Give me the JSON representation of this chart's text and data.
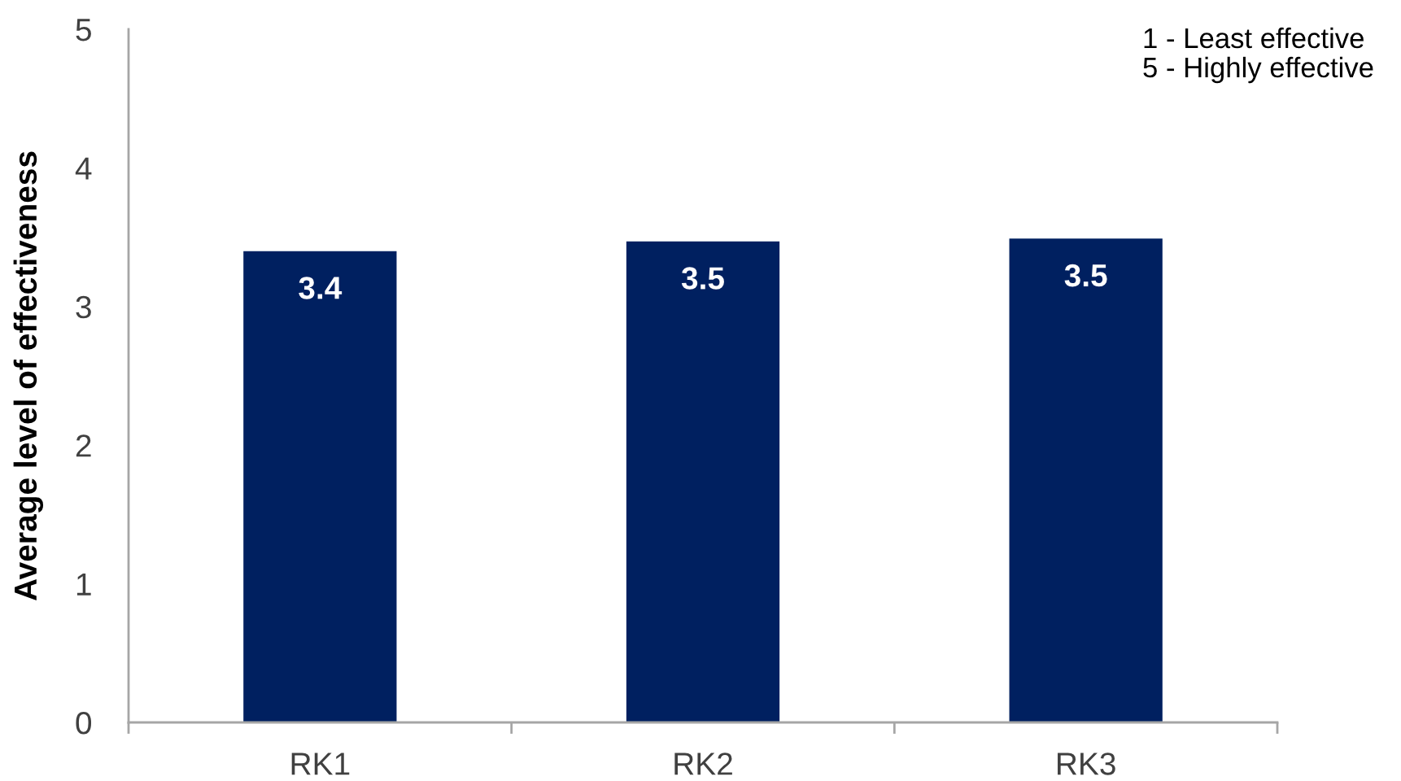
{
  "chart_data": {
    "type": "bar",
    "categories": [
      "RK1",
      "RK2",
      "RK3"
    ],
    "values": [
      3.4,
      3.47,
      3.49
    ],
    "value_labels": [
      "3.4",
      "3.5",
      "3.5"
    ],
    "color": "#002060",
    "ylabel": "Average level of effectiveness",
    "ylim": [
      0,
      5
    ],
    "yticks": [
      0,
      1,
      2,
      3,
      4,
      5
    ],
    "grid": false,
    "annotations": [
      "1 - Least effective",
      "5 - Highly effective"
    ]
  }
}
